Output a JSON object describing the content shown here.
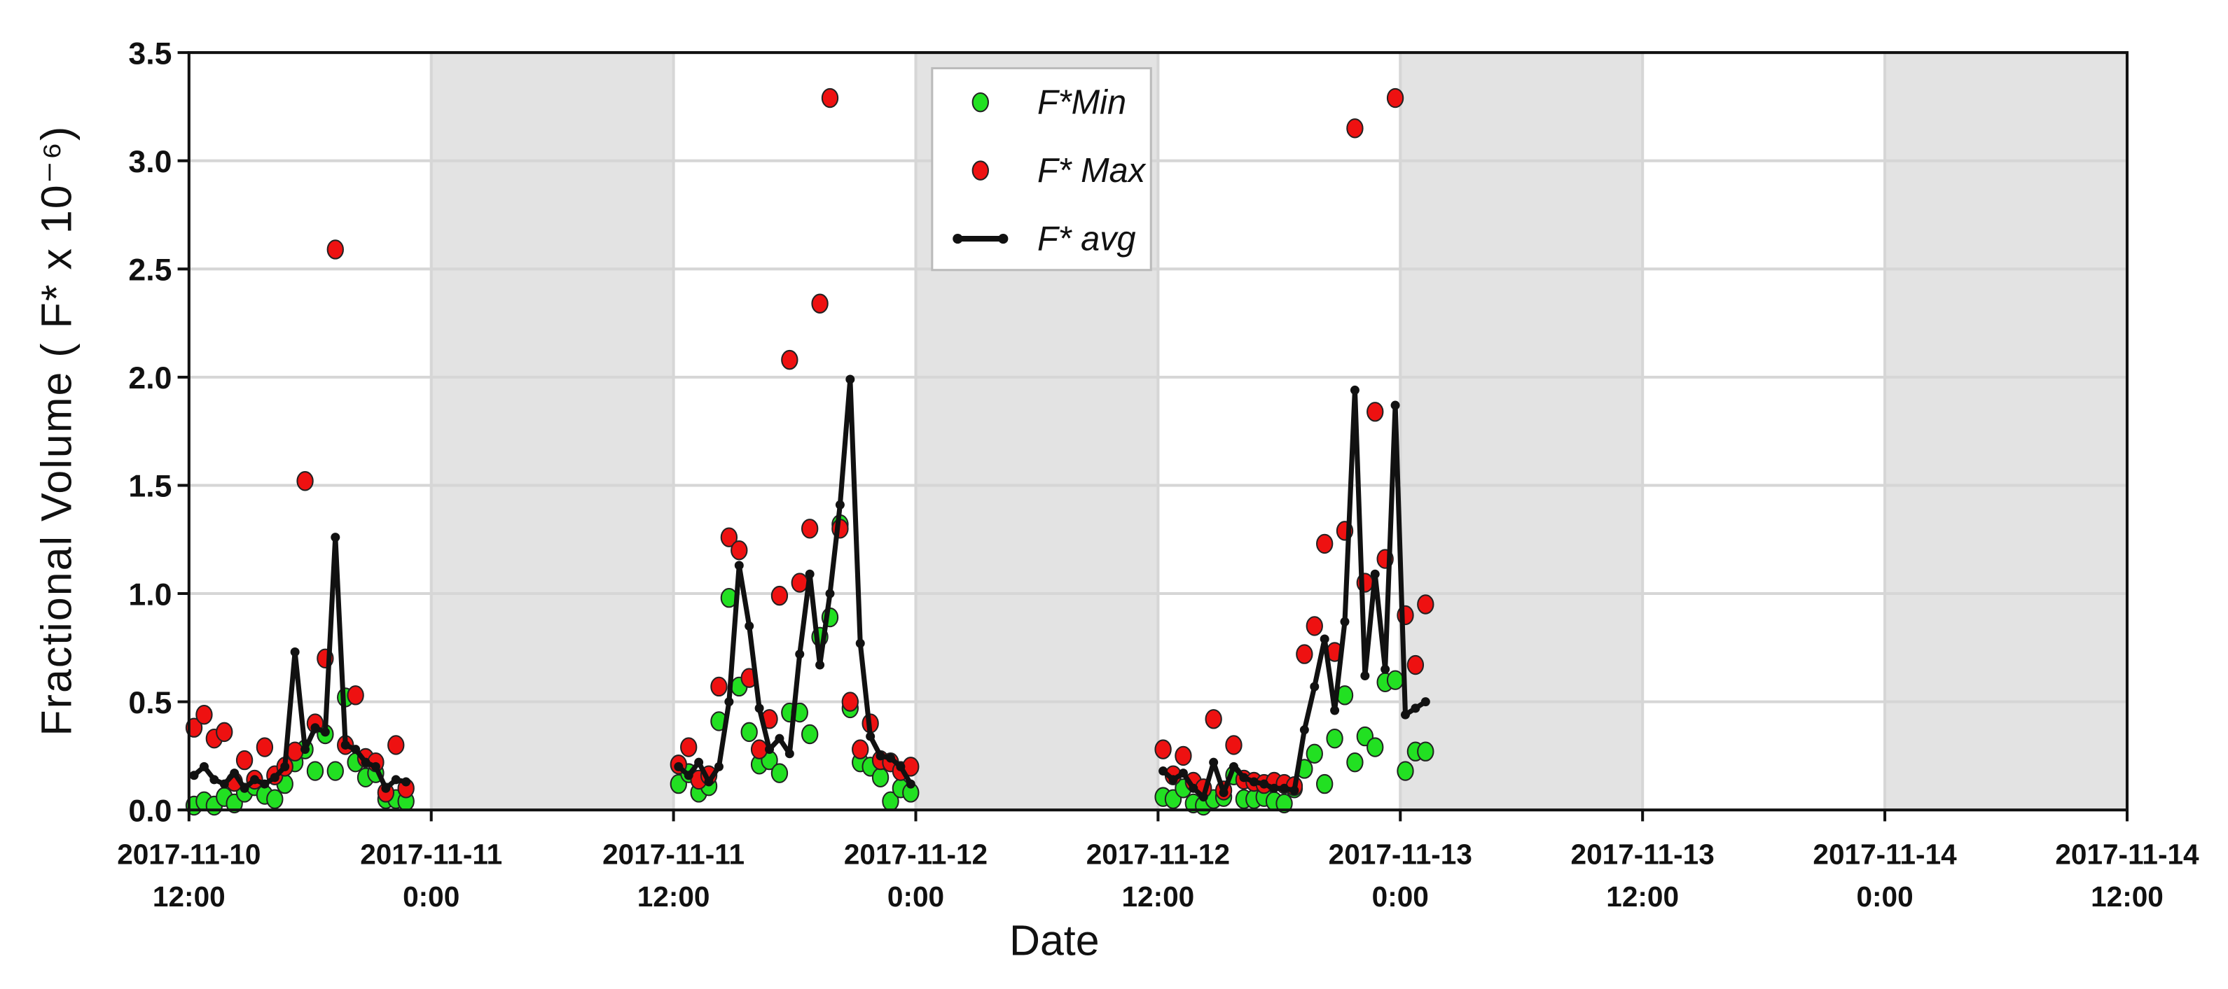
{
  "chart_data": {
    "type": "scatter",
    "xlabel": "Date",
    "ylabel": "Fractional Volume ( F* x 10⁻⁶)",
    "xlim": [
      "2017-11-10 12:00",
      "2017-11-14 12:00"
    ],
    "xticks": [
      {
        "value": "2017-11-10 12:00",
        "label": "2017-11-10\n12:00"
      },
      {
        "value": "2017-11-11 00:00",
        "label": "2017-11-11\n0:00"
      },
      {
        "value": "2017-11-11 12:00",
        "label": "2017-11-11\n12:00"
      },
      {
        "value": "2017-11-12 00:00",
        "label": "2017-11-12\n0:00"
      },
      {
        "value": "2017-11-12 12:00",
        "label": "2017-11-12\n12:00"
      },
      {
        "value": "2017-11-13 00:00",
        "label": "2017-11-13\n0:00"
      },
      {
        "value": "2017-11-13 12:00",
        "label": "2017-11-13\n12:00"
      },
      {
        "value": "2017-11-14 00:00",
        "label": "2017-11-14\n0:00"
      },
      {
        "value": "2017-11-14 12:00",
        "label": "2017-11-14\n12:00"
      }
    ],
    "ylim": [
      0,
      3.5
    ],
    "yticks": [
      {
        "value": 0,
        "label": "0.0"
      },
      {
        "value": 0.5,
        "label": "0.5"
      },
      {
        "value": 1,
        "label": "1.0"
      },
      {
        "value": 1.5,
        "label": "1.5"
      },
      {
        "value": 2,
        "label": "2.0"
      },
      {
        "value": 2.5,
        "label": "2.5"
      },
      {
        "value": 3,
        "label": "3.0"
      },
      {
        "value": 3.5,
        "label": "3.5"
      }
    ],
    "grid": true,
    "shaded_spans": [
      [
        "2017-11-11 00:00",
        "2017-11-11 12:00"
      ],
      [
        "2017-11-12 00:00",
        "2017-11-12 12:00"
      ],
      [
        "2017-11-13 00:00",
        "2017-11-13 12:00"
      ],
      [
        "2017-11-14 00:00",
        "2017-11-14 12:00"
      ]
    ],
    "shade_color": "#e3e3e3",
    "legend": "upper center",
    "x": [
      "2017-11-10 12:15",
      "2017-11-10 12:45",
      "2017-11-10 13:15",
      "2017-11-10 13:45",
      "2017-11-10 14:15",
      "2017-11-10 14:45",
      "2017-11-10 15:15",
      "2017-11-10 15:45",
      "2017-11-10 16:15",
      "2017-11-10 16:45",
      "2017-11-10 17:15",
      "2017-11-10 17:45",
      "2017-11-10 18:15",
      "2017-11-10 18:45",
      "2017-11-10 19:15",
      "2017-11-10 19:45",
      "2017-11-10 20:15",
      "2017-11-10 20:45",
      "2017-11-10 21:15",
      "2017-11-10 21:45",
      "2017-11-10 22:15",
      "2017-11-10 22:45",
      "2017-11-11 06:00",
      "2017-11-11 12:15",
      "2017-11-11 12:45",
      "2017-11-11 13:15",
      "2017-11-11 13:45",
      "2017-11-11 14:15",
      "2017-11-11 14:45",
      "2017-11-11 15:15",
      "2017-11-11 15:45",
      "2017-11-11 16:15",
      "2017-11-11 16:45",
      "2017-11-11 17:15",
      "2017-11-11 17:45",
      "2017-11-11 18:15",
      "2017-11-11 18:45",
      "2017-11-11 19:15",
      "2017-11-11 19:45",
      "2017-11-11 20:15",
      "2017-11-11 20:45",
      "2017-11-11 21:15",
      "2017-11-11 21:45",
      "2017-11-11 22:15",
      "2017-11-11 22:45",
      "2017-11-11 23:15",
      "2017-11-11 23:45",
      "2017-11-12 06:00",
      "2017-11-12 12:15",
      "2017-11-12 12:45",
      "2017-11-12 13:15",
      "2017-11-12 13:45",
      "2017-11-12 14:15",
      "2017-11-12 14:45",
      "2017-11-12 15:15",
      "2017-11-12 15:45",
      "2017-11-12 16:15",
      "2017-11-12 16:45",
      "2017-11-12 17:15",
      "2017-11-12 17:45",
      "2017-11-12 18:15",
      "2017-11-12 18:45",
      "2017-11-12 19:15",
      "2017-11-12 19:45",
      "2017-11-12 20:15",
      "2017-11-12 20:45",
      "2017-11-12 21:15",
      "2017-11-12 21:45",
      "2017-11-12 22:15",
      "2017-11-12 22:45",
      "2017-11-12 23:15",
      "2017-11-12 23:45",
      "2017-11-13 00:15",
      "2017-11-13 00:45",
      "2017-11-13 01:15"
    ],
    "series": [
      {
        "name": "F*Min",
        "color": "#22e022",
        "style": "markers",
        "values": [
          0.02,
          0.04,
          0.02,
          0.06,
          0.03,
          0.08,
          0.11,
          0.07,
          0.05,
          0.12,
          0.22,
          0.28,
          0.18,
          0.35,
          0.18,
          0.52,
          0.22,
          0.15,
          0.17,
          0.05,
          0.05,
          0.04,
          null,
          0.12,
          0.17,
          0.08,
          0.11,
          0.41,
          0.98,
          0.57,
          0.36,
          0.21,
          0.23,
          0.17,
          0.45,
          0.45,
          0.35,
          0.8,
          0.89,
          1.32,
          0.47,
          0.22,
          0.2,
          0.15,
          0.04,
          0.1,
          0.08,
          null,
          0.06,
          0.05,
          0.1,
          0.03,
          0.02,
          0.05,
          0.06,
          0.16,
          0.05,
          0.05,
          0.06,
          0.04,
          0.03,
          0.1,
          0.19,
          0.26,
          0.12,
          0.33,
          0.53,
          0.22,
          0.34,
          0.29,
          0.59,
          0.6,
          0.18,
          0.27,
          0.27
        ]
      },
      {
        "name": "F* Max",
        "color": "#ee1111",
        "style": "markers",
        "values": [
          0.38,
          0.44,
          0.33,
          0.36,
          0.13,
          0.23,
          0.14,
          0.29,
          0.16,
          0.2,
          0.27,
          1.52,
          0.4,
          0.7,
          2.59,
          0.3,
          0.53,
          0.24,
          0.22,
          0.08,
          0.3,
          0.1,
          null,
          0.21,
          0.29,
          0.14,
          0.16,
          0.57,
          1.26,
          1.2,
          0.61,
          0.28,
          0.42,
          0.99,
          2.08,
          1.05,
          1.3,
          2.34,
          3.29,
          1.3,
          0.5,
          0.28,
          0.4,
          0.23,
          0.22,
          0.18,
          0.2,
          null,
          0.28,
          0.16,
          0.25,
          0.13,
          0.1,
          0.42,
          0.09,
          0.3,
          0.14,
          0.13,
          0.12,
          0.13,
          0.12,
          0.11,
          0.72,
          0.85,
          1.23,
          0.73,
          1.29,
          3.15,
          1.05,
          1.84,
          1.16,
          3.29,
          0.9,
          0.67,
          0.95
        ]
      },
      {
        "name": "F* avg",
        "color": "#111111",
        "style": "line",
        "values": [
          0.16,
          0.2,
          0.14,
          0.12,
          0.17,
          0.1,
          0.14,
          0.12,
          0.15,
          0.2,
          0.73,
          0.28,
          0.38,
          0.36,
          1.26,
          0.3,
          0.28,
          0.22,
          0.2,
          0.1,
          0.14,
          0.13,
          null,
          0.2,
          0.16,
          0.22,
          0.13,
          0.2,
          0.5,
          1.13,
          0.85,
          0.47,
          0.28,
          0.33,
          0.26,
          0.72,
          1.09,
          0.67,
          1.0,
          1.41,
          1.99,
          0.77,
          0.34,
          0.25,
          0.24,
          0.2,
          0.12,
          null,
          0.18,
          0.14,
          0.17,
          0.1,
          0.06,
          0.22,
          0.08,
          0.2,
          0.15,
          0.13,
          0.12,
          0.1,
          0.1,
          0.09,
          0.37,
          0.57,
          0.79,
          0.46,
          0.87,
          1.94,
          0.62,
          1.09,
          0.65,
          1.87,
          0.44,
          0.47,
          0.5
        ]
      }
    ]
  }
}
